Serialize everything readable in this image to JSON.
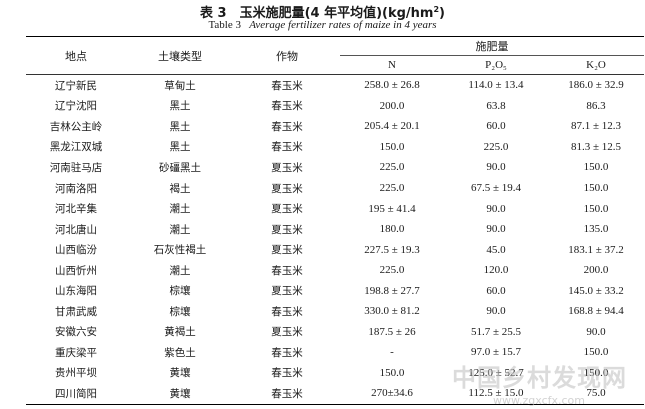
{
  "title": "表 3　玉米施肥量(4 年平均值)(kg/hm",
  "title_sup": "2",
  "title_end": ")",
  "subtitle_prefix": "Table 3",
  "subtitle_text": "Average fertilizer rates of maize in 4 years",
  "headers": {
    "location": "地点",
    "soil": "土壤类型",
    "crop": "作物",
    "fert": "施肥量",
    "n": "N",
    "p": "P₂O₅",
    "k": "K₂O"
  },
  "rows": [
    {
      "loc": "辽宁新民",
      "soil": "草甸土",
      "crop": "春玉米",
      "n": "258.0 ± 26.8",
      "p": "114.0 ± 13.4",
      "k": "186.0 ± 32.9"
    },
    {
      "loc": "辽宁沈阳",
      "soil": "黑土",
      "crop": "春玉米",
      "n": "200.0",
      "p": "63.8",
      "k": "86.3"
    },
    {
      "loc": "吉林公主岭",
      "soil": "黑土",
      "crop": "春玉米",
      "n": "205.4 ± 20.1",
      "p": "60.0",
      "k": "87.1 ± 12.3"
    },
    {
      "loc": "黑龙江双城",
      "soil": "黑土",
      "crop": "春玉米",
      "n": "150.0",
      "p": "225.0",
      "k": "81.3 ± 12.5"
    },
    {
      "loc": "河南驻马店",
      "soil": "砂礓黑土",
      "crop": "夏玉米",
      "n": "225.0",
      "p": "90.0",
      "k": "150.0"
    },
    {
      "loc": "河南洛阳",
      "soil": "褐土",
      "crop": "夏玉米",
      "n": "225.0",
      "p": "67.5 ± 19.4",
      "k": "150.0"
    },
    {
      "loc": "河北辛集",
      "soil": "潮土",
      "crop": "夏玉米",
      "n": "195 ± 41.4",
      "p": "90.0",
      "k": "150.0"
    },
    {
      "loc": "河北唐山",
      "soil": "潮土",
      "crop": "夏玉米",
      "n": "180.0",
      "p": "90.0",
      "k": "135.0"
    },
    {
      "loc": "山西临汾",
      "soil": "石灰性褐土",
      "crop": "夏玉米",
      "n": "227.5 ± 19.3",
      "p": "45.0",
      "k": "183.1 ± 37.2"
    },
    {
      "loc": "山西忻州",
      "soil": "潮土",
      "crop": "春玉米",
      "n": "225.0",
      "p": "120.0",
      "k": "200.0"
    },
    {
      "loc": "山东海阳",
      "soil": "棕壤",
      "crop": "夏玉米",
      "n": "198.8 ± 27.7",
      "p": "60.0",
      "k": "145.0 ± 33.2"
    },
    {
      "loc": "甘肃武威",
      "soil": "棕壤",
      "crop": "春玉米",
      "n": "330.0 ± 81.2",
      "p": "90.0",
      "k": "168.8 ± 94.4"
    },
    {
      "loc": "安徽六安",
      "soil": "黄褐土",
      "crop": "夏玉米",
      "n": "187.5 ± 26",
      "p": "51.7 ± 25.5",
      "k": "90.0"
    },
    {
      "loc": "重庆梁平",
      "soil": "紫色土",
      "crop": "春玉米",
      "n": "-",
      "p": "97.0 ± 15.7",
      "k": "150.0"
    },
    {
      "loc": "贵州平坝",
      "soil": "黄壤",
      "crop": "春玉米",
      "n": "150.0",
      "p": "125.0 ± 52.7",
      "k": "150.0"
    },
    {
      "loc": "四川简阳",
      "soil": "黄壤",
      "crop": "春玉米",
      "n": "270±34.6",
      "p": "112.5 ± 15.0",
      "k": "75.0"
    }
  ],
  "watermark": "中国乡村发现网",
  "watermark_url": "www.zgxcfx.com"
}
